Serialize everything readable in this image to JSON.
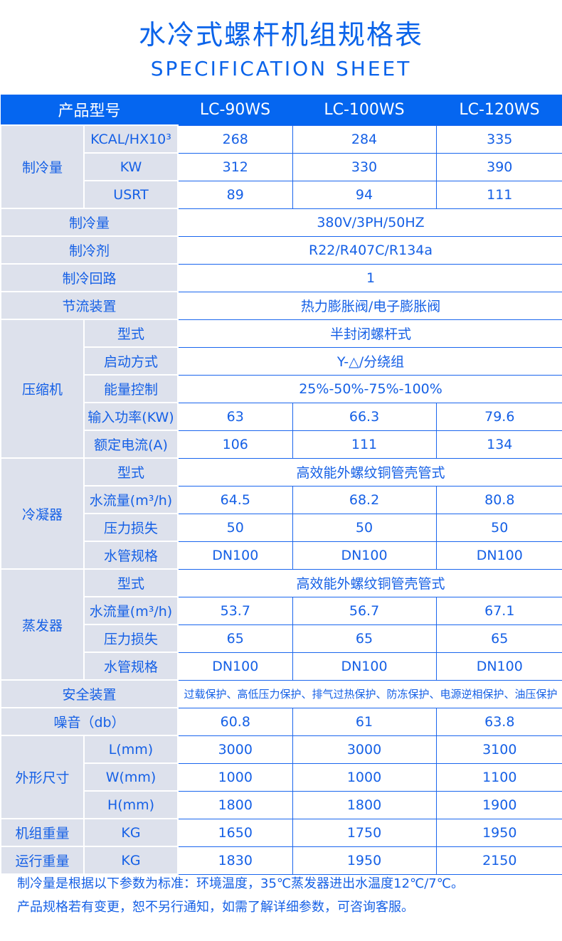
{
  "title": "水冷式螺杆机组规格表",
  "subtitle": "SPECIFICATION SHEET",
  "header": {
    "label": "产品型号",
    "models": [
      "LC-90WS",
      "LC-100WS",
      "LC-120WS"
    ]
  },
  "sections": [
    {
      "label": "制冷量",
      "rows": [
        {
          "sub": "KCAL/HX10³",
          "values": [
            "268",
            "284",
            "335"
          ]
        },
        {
          "sub": "KW",
          "values": [
            "312",
            "330",
            "390"
          ]
        },
        {
          "sub": "USRT",
          "values": [
            "89",
            "94",
            "111"
          ]
        }
      ]
    },
    {
      "label": "制冷量",
      "rows": [
        {
          "span": "380V/3PH/50HZ"
        }
      ]
    },
    {
      "label": "制冷剂",
      "rows": [
        {
          "span": "R22/R407C/R134a"
        }
      ]
    },
    {
      "label": "制冷回路",
      "rows": [
        {
          "span": "1"
        }
      ]
    },
    {
      "label": "节流装置",
      "rows": [
        {
          "span": "热力膨胀阀/电子膨胀阀"
        }
      ]
    },
    {
      "label": "压缩机",
      "rows": [
        {
          "sub": "型式",
          "span": "半封闭螺杆式"
        },
        {
          "sub": "启动方式",
          "span": "Y-△/分绕组"
        },
        {
          "sub": "能量控制",
          "span": "25%-50%-75%-100%"
        },
        {
          "sub": "输入功率(KW)",
          "values": [
            "63",
            "66.3",
            "79.6"
          ]
        },
        {
          "sub": "额定电流(A)",
          "values": [
            "106",
            "111",
            "134"
          ]
        }
      ]
    },
    {
      "label": "冷凝器",
      "rows": [
        {
          "sub": "型式",
          "span": "高效能外螺纹铜管壳管式"
        },
        {
          "sub": "水流量(m³/h)",
          "values": [
            "64.5",
            "68.2",
            "80.8"
          ]
        },
        {
          "sub": "压力损失",
          "values": [
            "50",
            "50",
            "50"
          ]
        },
        {
          "sub": "水管规格",
          "values": [
            "DN100",
            "DN100",
            "DN100"
          ]
        }
      ]
    },
    {
      "label": "蒸发器",
      "rows": [
        {
          "sub": "型式",
          "span": "高效能外螺纹铜管壳管式"
        },
        {
          "sub": "水流量(m³/h)",
          "values": [
            "53.7",
            "56.7",
            "67.1"
          ]
        },
        {
          "sub": "压力损失",
          "values": [
            "65",
            "65",
            "65"
          ]
        },
        {
          "sub": "水管规格",
          "values": [
            "DN100",
            "DN100",
            "DN100"
          ]
        }
      ]
    },
    {
      "label": "安全装置",
      "rows": [
        {
          "span": "过载保护、高低压力保护、排气过热保护、防冻保护、电源逆相保护、油压保护",
          "small": true
        }
      ]
    },
    {
      "label": "噪音（db）",
      "rows": [
        {
          "values": [
            "60.8",
            "61",
            "63.8"
          ]
        }
      ]
    },
    {
      "label": "外形尺寸",
      "rows": [
        {
          "sub": "L(mm)",
          "values": [
            "3000",
            "3000",
            "3100"
          ]
        },
        {
          "sub": "W(mm)",
          "values": [
            "1000",
            "1000",
            "1100"
          ]
        },
        {
          "sub": "H(mm)",
          "values": [
            "1800",
            "1800",
            "1900"
          ]
        }
      ]
    },
    {
      "label": "机组重量",
      "rows": [
        {
          "sub": "KG",
          "values": [
            "1650",
            "1750",
            "1950"
          ]
        }
      ]
    },
    {
      "label": "运行重量",
      "rows": [
        {
          "sub": "KG",
          "values": [
            "1830",
            "1950",
            "2150"
          ]
        }
      ]
    }
  ],
  "notes": [
    "制冷量是根据以下参数为标准：环境温度，35℃蒸发器进出水温度12℃/7℃。",
    "产品规格若有变更，恕不另行通知，如需了解详细参数，可咨询客服。"
  ],
  "colors": {
    "header_bg": "#0566f0",
    "label_bg": "#dde1ec",
    "text": "#1560e6"
  }
}
